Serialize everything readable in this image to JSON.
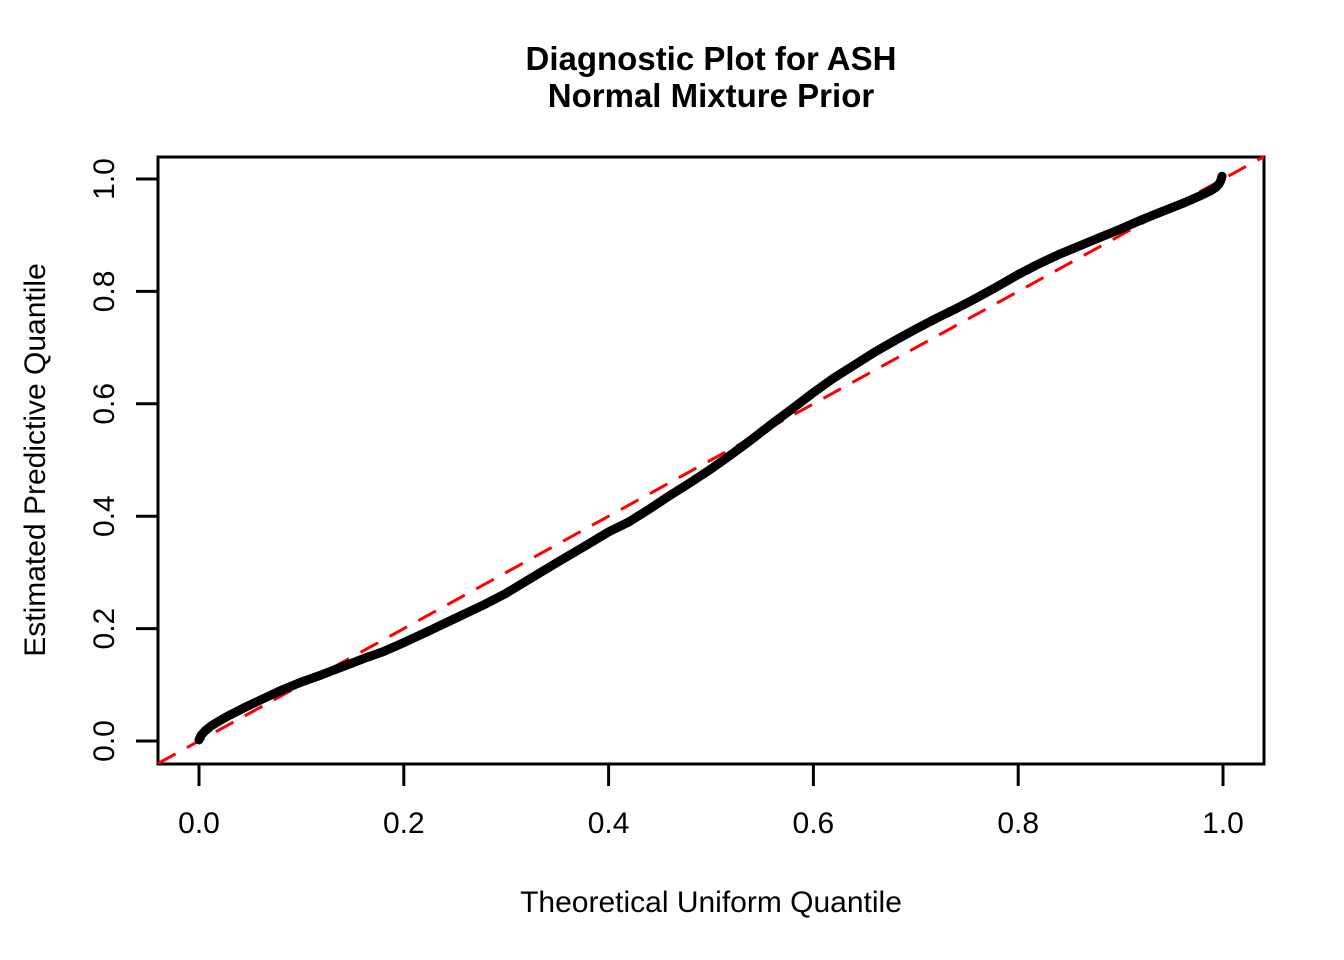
{
  "figure": {
    "background_color": "#ffffff",
    "title_line1": "Diagnostic Plot for ASH",
    "title_line2": "Normal Mixture Prior",
    "xlabel": "Theoretical Uniform Quantile",
    "ylabel": "Estimated Predictive Quantile"
  },
  "chart_data": {
    "type": "line",
    "title": "Diagnostic Plot for ASH Normal Mixture Prior",
    "xlabel": "Theoretical Uniform Quantile",
    "ylabel": "Estimated Predictive Quantile",
    "xlim": [
      -0.04,
      1.04
    ],
    "ylim": [
      -0.04,
      1.04
    ],
    "grid": false,
    "legend": "none",
    "x_ticks": [
      0.0,
      0.2,
      0.4,
      0.6,
      0.8,
      1.0
    ],
    "x_tick_labels": [
      "0.0",
      "0.2",
      "0.4",
      "0.6",
      "0.8",
      "1.0"
    ],
    "y_ticks": [
      0.0,
      0.2,
      0.4,
      0.6,
      0.8,
      1.0
    ],
    "y_tick_labels": [
      "0.0",
      "0.2",
      "0.4",
      "0.6",
      "0.8",
      "1.0"
    ],
    "series": [
      {
        "name": "estimated-predictive-quantile-curve",
        "color": "#000000",
        "style": "thick-solid",
        "points": [
          [
            0.0,
            0.002
          ],
          [
            0.002,
            0.01
          ],
          [
            0.006,
            0.018
          ],
          [
            0.012,
            0.027
          ],
          [
            0.02,
            0.036
          ],
          [
            0.03,
            0.046
          ],
          [
            0.045,
            0.06
          ],
          [
            0.06,
            0.073
          ],
          [
            0.08,
            0.09
          ],
          [
            0.1,
            0.105
          ],
          [
            0.12,
            0.118
          ],
          [
            0.14,
            0.132
          ],
          [
            0.16,
            0.146
          ],
          [
            0.18,
            0.159
          ],
          [
            0.2,
            0.175
          ],
          [
            0.22,
            0.192
          ],
          [
            0.25,
            0.218
          ],
          [
            0.28,
            0.244
          ],
          [
            0.3,
            0.263
          ],
          [
            0.32,
            0.285
          ],
          [
            0.35,
            0.318
          ],
          [
            0.38,
            0.35
          ],
          [
            0.4,
            0.372
          ],
          [
            0.42,
            0.39
          ],
          [
            0.44,
            0.413
          ],
          [
            0.46,
            0.437
          ],
          [
            0.48,
            0.46
          ],
          [
            0.5,
            0.484
          ],
          [
            0.52,
            0.51
          ],
          [
            0.54,
            0.537
          ],
          [
            0.56,
            0.565
          ],
          [
            0.58,
            0.592
          ],
          [
            0.6,
            0.62
          ],
          [
            0.62,
            0.646
          ],
          [
            0.64,
            0.669
          ],
          [
            0.66,
            0.692
          ],
          [
            0.68,
            0.713
          ],
          [
            0.7,
            0.733
          ],
          [
            0.72,
            0.752
          ],
          [
            0.74,
            0.77
          ],
          [
            0.76,
            0.789
          ],
          [
            0.78,
            0.809
          ],
          [
            0.8,
            0.83
          ],
          [
            0.82,
            0.849
          ],
          [
            0.84,
            0.866
          ],
          [
            0.86,
            0.881
          ],
          [
            0.88,
            0.896
          ],
          [
            0.9,
            0.911
          ],
          [
            0.92,
            0.927
          ],
          [
            0.935,
            0.938
          ],
          [
            0.95,
            0.949
          ],
          [
            0.96,
            0.956
          ],
          [
            0.97,
            0.964
          ],
          [
            0.98,
            0.972
          ],
          [
            0.988,
            0.979
          ],
          [
            0.993,
            0.985
          ],
          [
            0.996,
            0.991
          ],
          [
            0.998,
            0.998
          ],
          [
            0.999,
            1.005
          ]
        ]
      }
    ],
    "reference_line": {
      "name": "identity-line",
      "equation": "y = x",
      "color": "#FF0000",
      "style": "dashed",
      "from": [
        -0.04,
        -0.04
      ],
      "to": [
        1.04,
        1.04
      ]
    }
  }
}
